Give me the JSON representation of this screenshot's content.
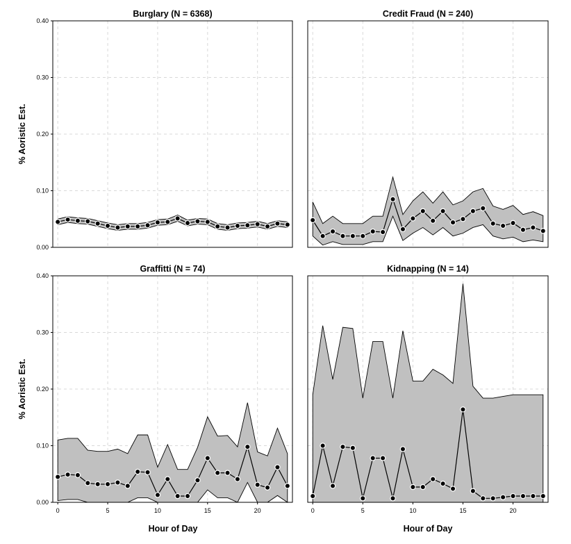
{
  "chart_data": {
    "type": "line",
    "ylabel": "% Aoristic Est.",
    "xlabel": "Hour of Day",
    "xlim": [
      -0.5,
      23.5
    ],
    "ylim": [
      0,
      0.4
    ],
    "x_ticks": [
      0,
      5,
      10,
      15,
      20
    ],
    "x_tick_labels": [
      "0",
      "5",
      "10",
      "15",
      "20"
    ],
    "y_ticks": [
      0,
      0.1,
      0.2,
      0.3,
      0.4
    ],
    "y_tick_labels": [
      "0.00",
      "0.10",
      "0.20",
      "0.30",
      "0.40"
    ],
    "grid": true,
    "panels": [
      {
        "title": "Burglary (N = 6368)",
        "x": [
          0,
          1,
          2,
          3,
          4,
          5,
          6,
          7,
          8,
          9,
          10,
          11,
          12,
          13,
          14,
          15,
          16,
          17,
          18,
          19,
          20,
          21,
          22,
          23
        ],
        "values": [
          0.045,
          0.049,
          0.047,
          0.046,
          0.042,
          0.038,
          0.035,
          0.037,
          0.037,
          0.039,
          0.044,
          0.045,
          0.051,
          0.043,
          0.046,
          0.045,
          0.037,
          0.035,
          0.038,
          0.039,
          0.041,
          0.037,
          0.042,
          0.04
        ],
        "lower": [
          0.04,
          0.044,
          0.042,
          0.041,
          0.037,
          0.033,
          0.03,
          0.032,
          0.032,
          0.034,
          0.039,
          0.04,
          0.046,
          0.038,
          0.041,
          0.04,
          0.032,
          0.03,
          0.033,
          0.034,
          0.036,
          0.032,
          0.037,
          0.035
        ],
        "upper": [
          0.05,
          0.054,
          0.052,
          0.051,
          0.047,
          0.043,
          0.04,
          0.042,
          0.042,
          0.044,
          0.049,
          0.05,
          0.057,
          0.048,
          0.051,
          0.05,
          0.042,
          0.04,
          0.043,
          0.044,
          0.046,
          0.042,
          0.047,
          0.045
        ]
      },
      {
        "title": "Credit Fraud (N = 240)",
        "x": [
          0,
          1,
          2,
          3,
          4,
          5,
          6,
          7,
          8,
          9,
          10,
          11,
          12,
          13,
          14,
          15,
          16,
          17,
          18,
          19,
          20,
          21,
          22,
          23
        ],
        "values": [
          0.048,
          0.02,
          0.028,
          0.02,
          0.02,
          0.02,
          0.028,
          0.027,
          0.085,
          0.032,
          0.051,
          0.064,
          0.047,
          0.064,
          0.044,
          0.05,
          0.064,
          0.069,
          0.042,
          0.038,
          0.043,
          0.031,
          0.035,
          0.029
        ],
        "lower": [
          0.02,
          0.004,
          0.01,
          0.005,
          0.005,
          0.005,
          0.01,
          0.01,
          0.055,
          0.012,
          0.025,
          0.035,
          0.022,
          0.035,
          0.02,
          0.025,
          0.035,
          0.04,
          0.02,
          0.015,
          0.018,
          0.01,
          0.013,
          0.01
        ],
        "upper": [
          0.08,
          0.042,
          0.055,
          0.042,
          0.042,
          0.042,
          0.055,
          0.055,
          0.124,
          0.058,
          0.082,
          0.098,
          0.078,
          0.098,
          0.075,
          0.082,
          0.098,
          0.104,
          0.073,
          0.067,
          0.074,
          0.058,
          0.063,
          0.056
        ]
      },
      {
        "title": "Graffitti (N = 74)",
        "x": [
          0,
          1,
          2,
          3,
          4,
          5,
          6,
          7,
          8,
          9,
          10,
          11,
          12,
          13,
          14,
          15,
          16,
          17,
          18,
          19,
          20,
          21,
          22,
          23
        ],
        "values": [
          0.045,
          0.049,
          0.048,
          0.034,
          0.032,
          0.032,
          0.035,
          0.029,
          0.054,
          0.053,
          0.013,
          0.041,
          0.011,
          0.011,
          0.039,
          0.078,
          0.052,
          0.052,
          0.041,
          0.098,
          0.031,
          0.026,
          0.062,
          0.029
        ],
        "lower": [
          0.003,
          0.005,
          0.005,
          0.0,
          0.0,
          0.0,
          0.0,
          0.0,
          0.008,
          0.008,
          0.0,
          0.0,
          0.0,
          0.0,
          0.0,
          0.022,
          0.008,
          0.008,
          0.0,
          0.035,
          0.0,
          0.0,
          0.012,
          0.0
        ],
        "upper": [
          0.11,
          0.113,
          0.113,
          0.092,
          0.09,
          0.09,
          0.094,
          0.086,
          0.119,
          0.119,
          0.062,
          0.102,
          0.058,
          0.058,
          0.097,
          0.151,
          0.117,
          0.118,
          0.098,
          0.176,
          0.089,
          0.082,
          0.131,
          0.086
        ]
      },
      {
        "title": "Kidnapping (N = 14)",
        "x": [
          0,
          1,
          2,
          3,
          4,
          5,
          6,
          7,
          8,
          9,
          10,
          11,
          12,
          13,
          14,
          15,
          16,
          17,
          18,
          19,
          20,
          21,
          22,
          23
        ],
        "values": [
          0.011,
          0.1,
          0.029,
          0.098,
          0.096,
          0.007,
          0.078,
          0.078,
          0.007,
          0.094,
          0.027,
          0.027,
          0.041,
          0.033,
          0.024,
          0.164,
          0.02,
          0.007,
          0.007,
          0.009,
          0.011,
          0.011,
          0.011,
          0.011
        ],
        "lower": [
          0.0,
          0.0,
          0.0,
          0.0,
          0.0,
          0.0,
          0.0,
          0.0,
          0.0,
          0.0,
          0.0,
          0.0,
          0.0,
          0.0,
          0.0,
          0.0,
          0.0,
          0.0,
          0.0,
          0.0,
          0.0,
          0.0,
          0.0,
          0.0
        ],
        "upper": [
          0.19,
          0.312,
          0.217,
          0.309,
          0.307,
          0.184,
          0.284,
          0.284,
          0.184,
          0.303,
          0.214,
          0.214,
          0.235,
          0.225,
          0.21,
          0.386,
          0.205,
          0.184,
          0.184,
          0.187,
          0.19,
          0.19,
          0.19,
          0.19
        ]
      }
    ]
  }
}
